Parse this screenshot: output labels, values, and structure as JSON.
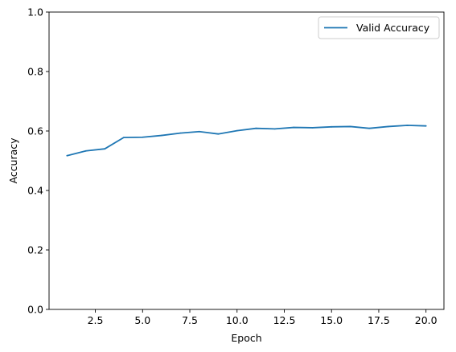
{
  "chart_data": {
    "type": "line",
    "title": "",
    "xlabel": "Epoch",
    "ylabel": "Accuracy",
    "xlim": [
      0.05,
      20.95
    ],
    "ylim": [
      0.0,
      1.0
    ],
    "x_ticks": [
      2.5,
      5.0,
      7.5,
      10.0,
      12.5,
      15.0,
      17.5,
      20.0
    ],
    "x_tick_labels": [
      "2.5",
      "5.0",
      "7.5",
      "10.0",
      "12.5",
      "15.0",
      "17.5",
      "20.0"
    ],
    "y_ticks": [
      0.0,
      0.2,
      0.4,
      0.6,
      0.8,
      1.0
    ],
    "y_tick_labels": [
      "0.0",
      "0.2",
      "0.4",
      "0.6",
      "0.8",
      "1.0"
    ],
    "grid": false,
    "legend_position": "top-right",
    "series": [
      {
        "name": "Valid Accuracy",
        "color": "#1f77b4",
        "x": [
          1,
          2,
          3,
          4,
          5,
          6,
          7,
          8,
          9,
          10,
          11,
          12,
          13,
          14,
          15,
          16,
          17,
          18,
          19,
          20
        ],
        "y": [
          0.517,
          0.533,
          0.54,
          0.578,
          0.579,
          0.585,
          0.593,
          0.598,
          0.59,
          0.601,
          0.609,
          0.607,
          0.612,
          0.611,
          0.614,
          0.615,
          0.609,
          0.615,
          0.619,
          0.617
        ]
      }
    ]
  }
}
